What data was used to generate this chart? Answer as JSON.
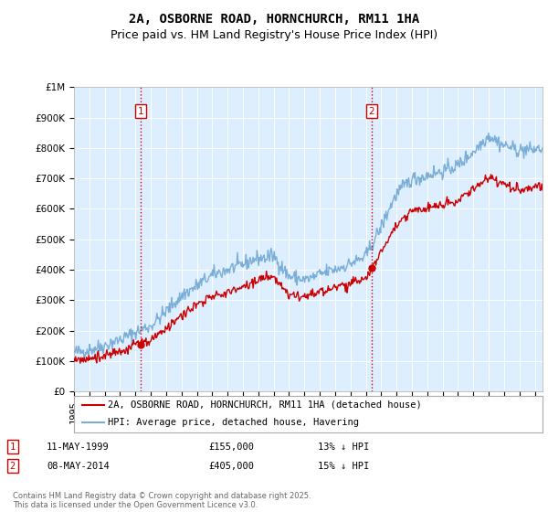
{
  "title": "2A, OSBORNE ROAD, HORNCHURCH, RM11 1HA",
  "subtitle": "Price paid vs. HM Land Registry's House Price Index (HPI)",
  "ylim": [
    0,
    1000000
  ],
  "yticks": [
    0,
    100000,
    200000,
    300000,
    400000,
    500000,
    600000,
    700000,
    800000,
    900000,
    1000000
  ],
  "ytick_labels": [
    "£0",
    "£100K",
    "£200K",
    "£300K",
    "£400K",
    "£500K",
    "£600K",
    "£700K",
    "£800K",
    "£900K",
    "£1M"
  ],
  "xlim_start": 1995.0,
  "xlim_end": 2025.5,
  "sale1_date": 1999.36,
  "sale1_price": 155000,
  "sale1_label": "1",
  "sale2_date": 2014.36,
  "sale2_price": 405000,
  "sale2_label": "2",
  "hpi_color": "#7aaed6",
  "sold_color": "#cc0000",
  "vline_color": "#cc0000",
  "vline_style": ":",
  "chart_bg": "#ddeeff",
  "background_color": "#ffffff",
  "grid_color": "#ffffff",
  "legend_label_sold": "2A, OSBORNE ROAD, HORNCHURCH, RM11 1HA (detached house)",
  "legend_label_hpi": "HPI: Average price, detached house, Havering",
  "table_row1": [
    "1",
    "11-MAY-1999",
    "£155,000",
    "13% ↓ HPI"
  ],
  "table_row2": [
    "2",
    "08-MAY-2014",
    "£405,000",
    "15% ↓ HPI"
  ],
  "footer": "Contains HM Land Registry data © Crown copyright and database right 2025.\nThis data is licensed under the Open Government Licence v3.0.",
  "title_fontsize": 10,
  "subtitle_fontsize": 9,
  "tick_fontsize": 7.5,
  "legend_fontsize": 7.5
}
